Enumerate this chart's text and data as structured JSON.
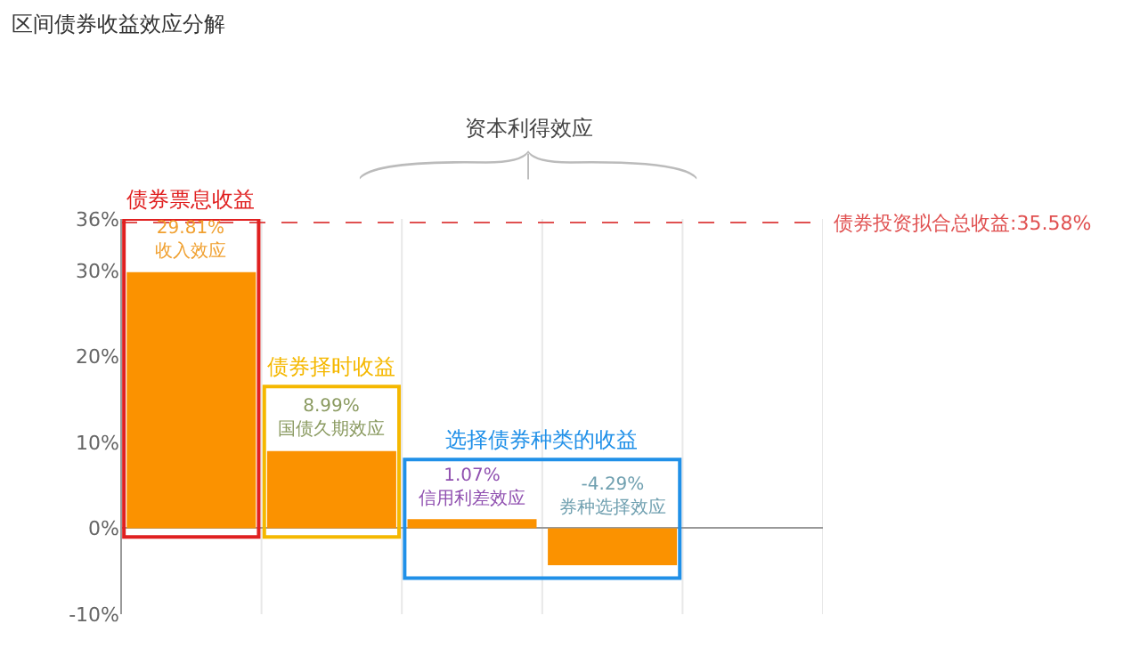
{
  "chart_data": {
    "type": "bar",
    "title": "区间债券收益效应分解",
    "categories": [
      null,
      null,
      null,
      null,
      null
    ],
    "values": [
      29.81,
      8.99,
      1.07,
      -4.29,
      null
    ],
    "color": "#fb9200",
    "value_labels": [
      "29.81%\n收入效应",
      "8.99%\n国债久期效应",
      "1.07%\n信用利差效应",
      "-4.29%\n券种选择效应",
      null
    ],
    "ylim": [
      -10,
      36
    ],
    "yticks": [
      {
        "value": -10,
        "label": "-10%"
      },
      {
        "value": 0,
        "label": "0%"
      },
      {
        "value": 10,
        "label": "10%"
      },
      {
        "value": 20,
        "label": "20%"
      },
      {
        "value": 30,
        "label": "30%"
      },
      {
        "value": 36,
        "label": "36%"
      }
    ],
    "grid": "x",
    "ref_lines": [
      {
        "axis": "y",
        "value": 35.58,
        "label": "债券投资拟合总收益:35.58%",
        "color": "#e05050",
        "line_style": "dashed"
      }
    ],
    "annotations": [
      "债券票息收益",
      "债券择时收益",
      "选择债券种类的收益",
      "资本利得效应"
    ]
  }
}
